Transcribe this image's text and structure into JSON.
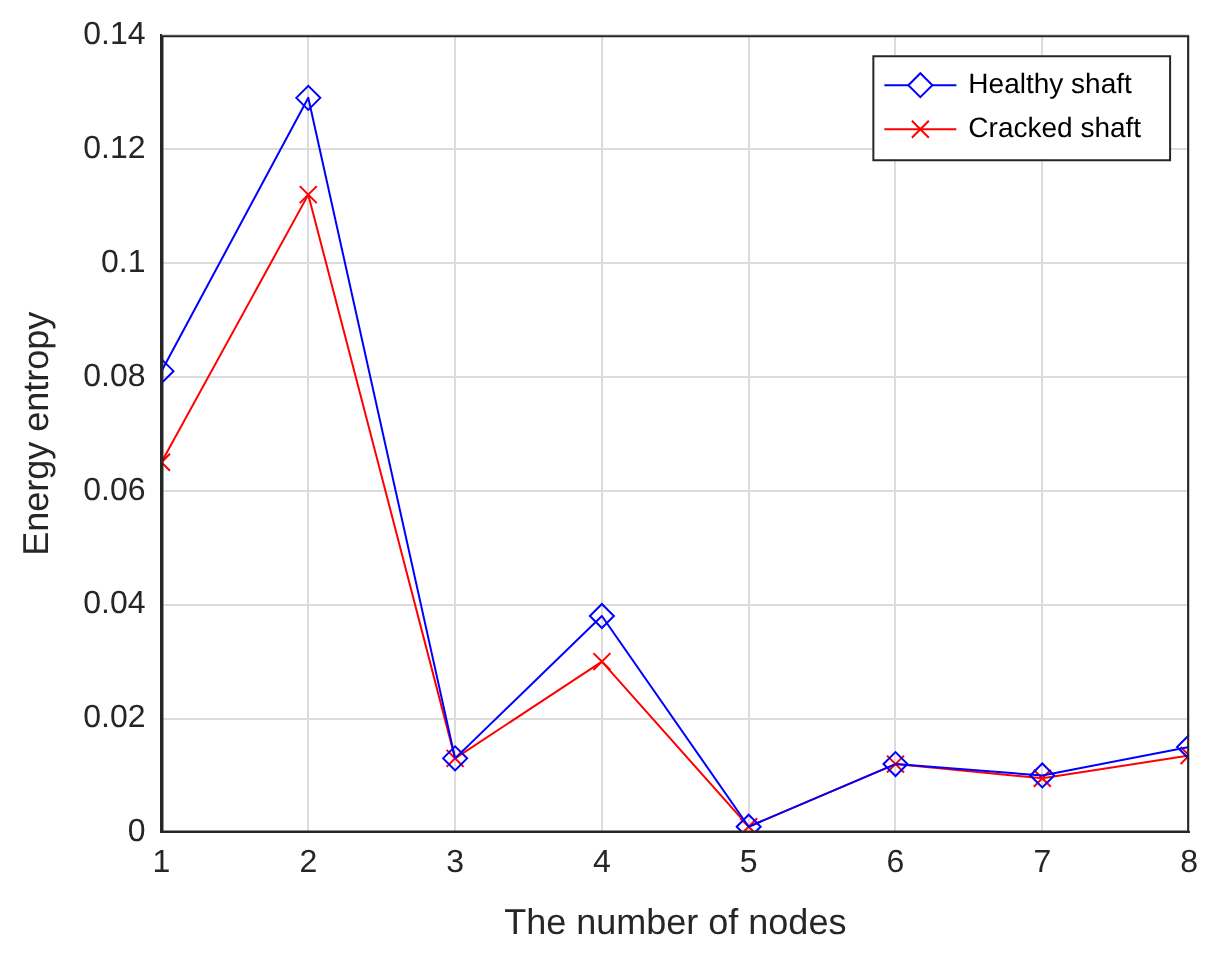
{
  "chart_data": {
    "type": "line",
    "xlabel": "The number of nodes",
    "ylabel": "Energy entropy",
    "x": [
      1,
      2,
      3,
      4,
      5,
      6,
      7,
      8
    ],
    "series": [
      {
        "name": "Healthy shaft",
        "color": "#0000ff",
        "marker": "diamond",
        "values": [
          0.081,
          0.129,
          0.013,
          0.038,
          0.001,
          0.012,
          0.01,
          0.015
        ]
      },
      {
        "name": "Cracked shaft",
        "color": "#ff0000",
        "marker": "cross",
        "values": [
          0.065,
          0.112,
          0.013,
          0.03,
          0.001,
          0.012,
          0.0095,
          0.0135
        ]
      }
    ],
    "xlim": [
      1,
      8
    ],
    "xticks": [
      1,
      2,
      3,
      4,
      5,
      6,
      7,
      8
    ],
    "ylim": [
      0,
      0.14
    ],
    "yticks": [
      0,
      0.02,
      0.04,
      0.06,
      0.08,
      0.1,
      0.12,
      0.14
    ],
    "grid": true,
    "legend": "top right",
    "line_style": "solid"
  }
}
